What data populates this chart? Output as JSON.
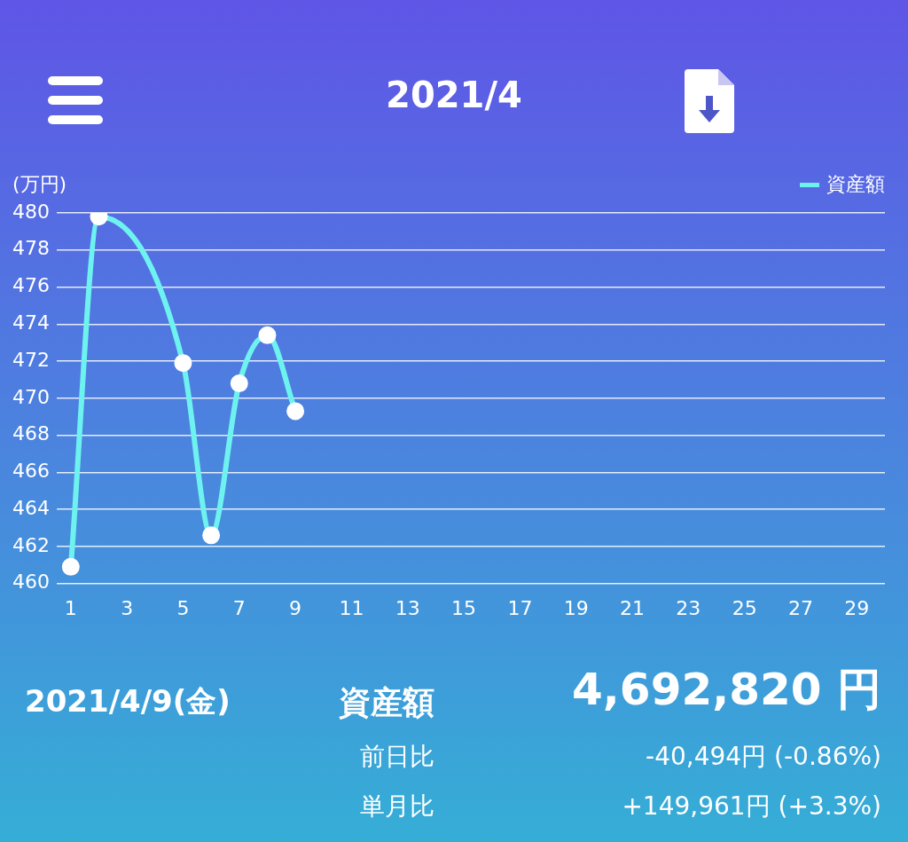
{
  "chart_data": {
    "type": "line",
    "title": "2021/4",
    "ylabel": "(万円)",
    "x": [
      1,
      2,
      5,
      6,
      7,
      8,
      9
    ],
    "series": [
      {
        "name": "資産額",
        "color": "#6ef2f0",
        "values": [
          460.9,
          479.8,
          471.9,
          462.6,
          470.8,
          473.4,
          469.3
        ]
      }
    ],
    "xlim": [
      0.5,
      30
    ],
    "xticks": [
      1,
      3,
      5,
      7,
      9,
      11,
      13,
      15,
      17,
      19,
      21,
      23,
      25,
      27,
      29
    ],
    "ylim": [
      460,
      480
    ],
    "yticks": [
      460,
      462,
      464,
      466,
      468,
      470,
      472,
      474,
      476,
      478,
      480
    ],
    "grid": "y",
    "legend": "top right",
    "marker": "circle",
    "line_style": "solid",
    "annotations": [
      "2021/4/9(金)",
      "資産額",
      "4,692,820 円",
      "前日比",
      "-40,494円 (-0.86%)",
      "単月比",
      "+149,961円 (+3.3%)"
    ]
  }
}
